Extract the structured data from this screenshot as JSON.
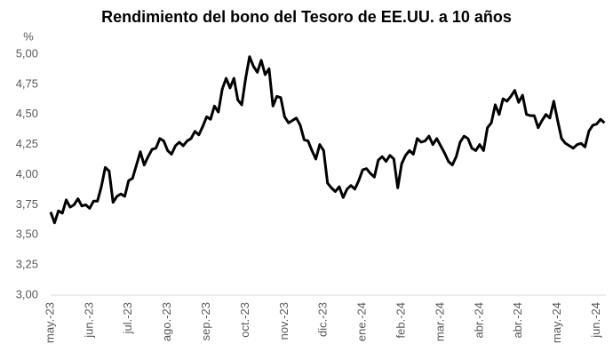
{
  "chart_data": {
    "type": "line",
    "title": "Rendimiento del bono del Tesoro de EE.UU. a 10 años",
    "ylabel": "%",
    "categories": [
      "may.-23",
      null,
      null,
      null,
      null,
      null,
      null,
      null,
      null,
      null,
      "jun.-23",
      null,
      null,
      null,
      null,
      null,
      null,
      null,
      null,
      null,
      "jul.-23",
      null,
      null,
      null,
      null,
      null,
      null,
      null,
      null,
      null,
      "ago.-23",
      null,
      null,
      null,
      null,
      null,
      null,
      null,
      null,
      null,
      "sep.-23",
      null,
      null,
      null,
      null,
      null,
      null,
      null,
      null,
      null,
      "oct.-23",
      null,
      null,
      null,
      null,
      null,
      null,
      null,
      null,
      null,
      "nov.-23",
      null,
      null,
      null,
      null,
      null,
      null,
      null,
      null,
      null,
      "dic.-23",
      null,
      null,
      null,
      null,
      null,
      null,
      null,
      null,
      null,
      "ene.-24",
      null,
      null,
      null,
      null,
      null,
      null,
      null,
      null,
      null,
      "feb.-24",
      null,
      null,
      null,
      null,
      null,
      null,
      null,
      null,
      null,
      "mar.-24",
      null,
      null,
      null,
      null,
      null,
      null,
      null,
      null,
      null,
      "abr.-24",
      null,
      null,
      null,
      null,
      null,
      null,
      null,
      null,
      null,
      "abr.-24",
      null,
      null,
      null,
      null,
      null,
      null,
      null,
      null,
      null,
      "may.-24",
      null,
      null,
      null,
      null,
      null,
      null,
      null,
      null,
      null,
      "jun.-24",
      null,
      null
    ],
    "series": [
      {
        "color": "#000000",
        "values": [
          3.69,
          3.6,
          3.7,
          3.68,
          3.79,
          3.73,
          3.75,
          3.8,
          3.74,
          3.75,
          3.72,
          3.78,
          3.78,
          3.9,
          4.06,
          4.03,
          3.77,
          3.82,
          3.84,
          3.82,
          3.95,
          3.97,
          4.08,
          4.19,
          4.08,
          4.15,
          4.21,
          4.22,
          4.3,
          4.28,
          4.2,
          4.17,
          4.24,
          4.27,
          4.24,
          4.28,
          4.3,
          4.36,
          4.33,
          4.4,
          4.48,
          4.46,
          4.57,
          4.52,
          4.71,
          4.8,
          4.72,
          4.8,
          4.62,
          4.58,
          4.8,
          4.98,
          4.9,
          4.85,
          4.95,
          4.83,
          4.88,
          4.57,
          4.65,
          4.64,
          4.48,
          4.43,
          4.45,
          4.47,
          4.41,
          4.29,
          4.28,
          4.2,
          4.13,
          4.25,
          4.2,
          3.93,
          3.89,
          3.86,
          3.9,
          3.81,
          3.88,
          3.91,
          3.88,
          3.95,
          4.04,
          4.05,
          4.01,
          3.98,
          4.12,
          4.15,
          4.11,
          4.16,
          4.13,
          3.89,
          4.09,
          4.16,
          4.2,
          4.17,
          4.3,
          4.27,
          4.28,
          4.32,
          4.25,
          4.3,
          4.24,
          4.18,
          4.11,
          4.08,
          4.15,
          4.27,
          4.32,
          4.3,
          4.22,
          4.2,
          4.25,
          4.2,
          4.39,
          4.43,
          4.58,
          4.5,
          4.63,
          4.61,
          4.65,
          4.7,
          4.6,
          4.66,
          4.5,
          4.49,
          4.49,
          4.39,
          4.45,
          4.5,
          4.47,
          4.61,
          4.45,
          4.3,
          4.26,
          4.24,
          4.22,
          4.25,
          4.26,
          4.23,
          4.36,
          4.41,
          4.42,
          4.46,
          4.43
        ]
      }
    ],
    "ylim": [
      3,
      5
    ],
    "yticks": [
      {
        "value": 3,
        "label": "3,00"
      },
      {
        "value": 3.25,
        "label": "3,25"
      },
      {
        "value": 3.5,
        "label": "3,50"
      },
      {
        "value": 3.75,
        "label": "3,75"
      },
      {
        "value": 4,
        "label": "4,00"
      },
      {
        "value": 4.25,
        "label": "4,25"
      },
      {
        "value": 4.5,
        "label": "4,50"
      },
      {
        "value": 4.75,
        "label": "4,75"
      },
      {
        "value": 5,
        "label": "5,00"
      }
    ]
  }
}
